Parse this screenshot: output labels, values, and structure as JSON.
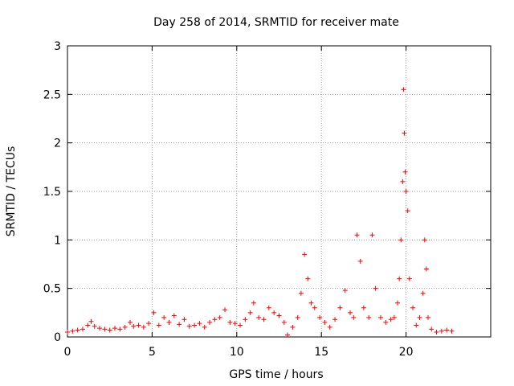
{
  "chart_data": {
    "type": "scatter",
    "title": "Day 258 of 2014, SRMTID for receiver mate",
    "xlabel": "GPS time / hours",
    "ylabel": "SRMTID / TECUs",
    "xlim": [
      0,
      25
    ],
    "ylim": [
      0,
      3
    ],
    "xticks": [
      0,
      5,
      10,
      15,
      20
    ],
    "xtick_labels": [
      "0",
      "5",
      "10",
      "15",
      "20"
    ],
    "yticks": [
      0,
      0.5,
      1,
      1.5,
      2,
      2.5,
      3
    ],
    "ytick_labels": [
      "0",
      "0.5",
      "1",
      "1.5",
      "2",
      "2.5",
      "3"
    ],
    "grid": true,
    "marker": "plus",
    "color": "#ff0000",
    "series": [
      {
        "name": "SRMTID",
        "x": [
          0.0,
          0.3,
          0.6,
          0.9,
          1.2,
          1.4,
          1.6,
          1.9,
          2.2,
          2.5,
          2.8,
          3.1,
          3.4,
          3.7,
          3.9,
          4.2,
          4.5,
          4.8,
          5.1,
          5.4,
          5.7,
          6.0,
          6.3,
          6.6,
          6.9,
          7.2,
          7.5,
          7.8,
          8.1,
          8.4,
          8.7,
          9.0,
          9.3,
          9.6,
          9.9,
          10.2,
          10.5,
          10.8,
          11.0,
          11.3,
          11.6,
          11.9,
          12.2,
          12.5,
          12.8,
          13.0,
          13.3,
          13.6,
          13.8,
          14.0,
          14.2,
          14.4,
          14.6,
          14.9,
          15.2,
          15.5,
          15.8,
          16.1,
          16.4,
          16.7,
          16.9,
          17.1,
          17.3,
          17.5,
          17.8,
          18.0,
          18.2,
          18.5,
          18.8,
          19.1,
          19.3,
          19.5,
          19.6,
          19.7,
          19.8,
          19.85,
          19.9,
          19.95,
          20.0,
          20.1,
          20.2,
          20.4,
          20.6,
          20.8,
          21.0,
          21.1,
          21.2,
          21.3,
          21.5,
          21.8,
          22.1,
          22.4,
          22.7
        ],
        "y": [
          0.05,
          0.06,
          0.07,
          0.08,
          0.12,
          0.16,
          0.11,
          0.09,
          0.08,
          0.07,
          0.09,
          0.08,
          0.1,
          0.15,
          0.11,
          0.12,
          0.1,
          0.14,
          0.25,
          0.12,
          0.2,
          0.15,
          0.22,
          0.13,
          0.18,
          0.11,
          0.12,
          0.14,
          0.1,
          0.15,
          0.18,
          0.2,
          0.28,
          0.15,
          0.14,
          0.12,
          0.18,
          0.25,
          0.35,
          0.2,
          0.18,
          0.3,
          0.25,
          0.22,
          0.15,
          0.02,
          0.1,
          0.2,
          0.45,
          0.85,
          0.6,
          0.35,
          0.3,
          0.2,
          0.15,
          0.1,
          0.18,
          0.3,
          0.48,
          0.25,
          0.2,
          1.05,
          0.78,
          0.3,
          0.2,
          1.05,
          0.5,
          0.2,
          0.15,
          0.18,
          0.2,
          0.35,
          0.6,
          1.0,
          1.6,
          2.55,
          2.1,
          1.7,
          1.5,
          1.3,
          0.6,
          0.3,
          0.12,
          0.2,
          0.45,
          1.0,
          0.7,
          0.2,
          0.08,
          0.05,
          0.06,
          0.07,
          0.06
        ]
      }
    ]
  }
}
